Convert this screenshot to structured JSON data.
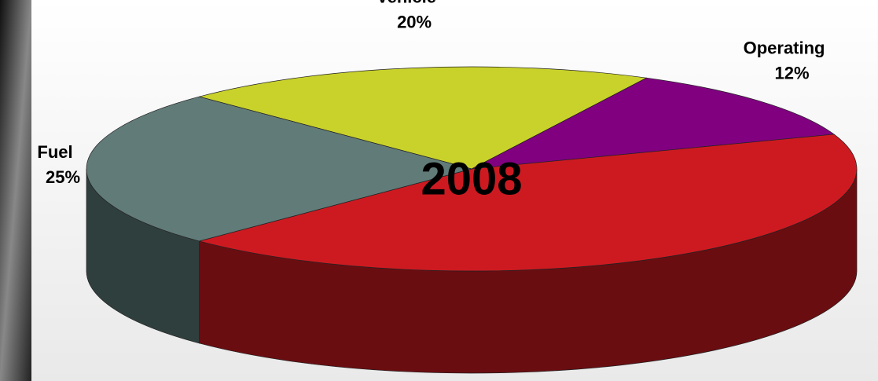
{
  "chart_data": {
    "type": "pie",
    "title": "2008",
    "categories": [
      "Vehicle",
      "Operating",
      null,
      "Fuel"
    ],
    "values": [
      20,
      12,
      43,
      25
    ],
    "value_labels": [
      "20%",
      "12%",
      null,
      "25%"
    ],
    "colors": [
      "#c9d22b",
      "#800080",
      "#cd1a21",
      "#617b79"
    ],
    "side_colors": [
      "#6b6f17",
      "#400040",
      "#6a0d11",
      "#2f3f3d"
    ]
  }
}
